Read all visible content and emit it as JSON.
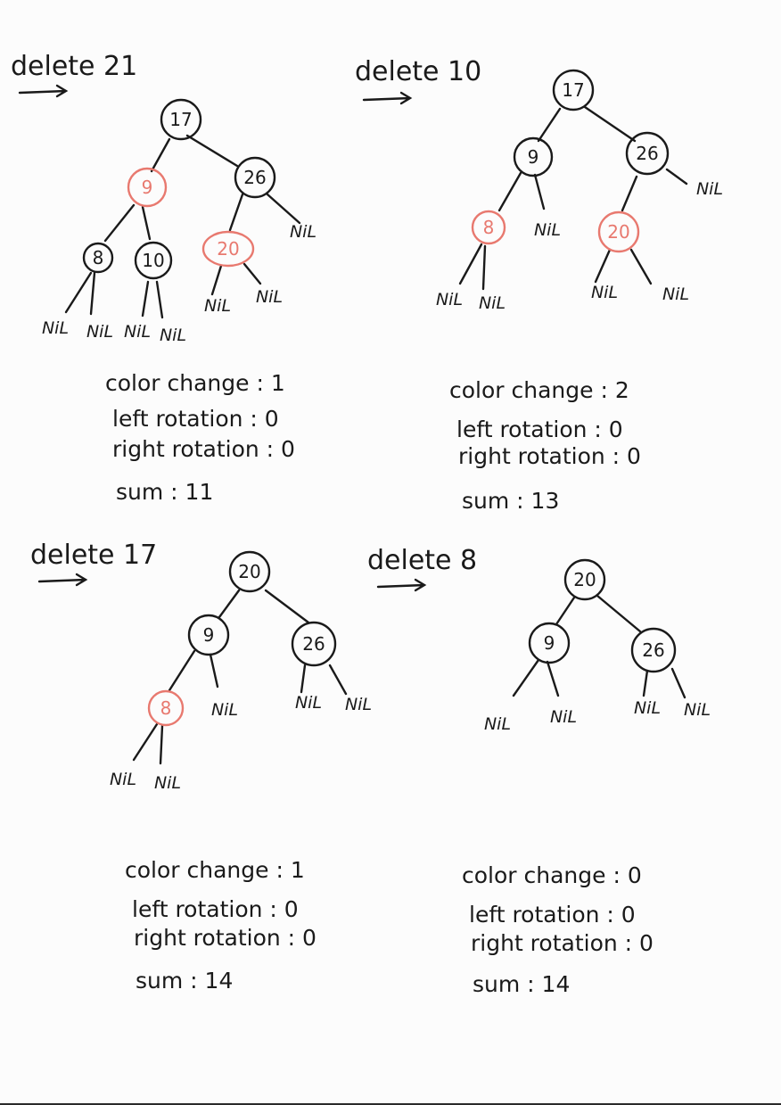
{
  "colors": {
    "black": "#1a1a1a",
    "red": "#e8796f"
  },
  "panels": [
    {
      "title": "delete 21",
      "nodes": [
        {
          "label": "17",
          "color": "black"
        },
        {
          "label": "9",
          "color": "red"
        },
        {
          "label": "26",
          "color": "black"
        },
        {
          "label": "8",
          "color": "black"
        },
        {
          "label": "10",
          "color": "black"
        },
        {
          "label": "20",
          "color": "red"
        }
      ],
      "nils": [
        "NiL",
        "NiL",
        "NiL",
        "NiL",
        "NiL",
        "NiL",
        "NiL"
      ],
      "stats": {
        "color_change": "color change : 1",
        "left_rotation": "left rotation : 0",
        "right_rotation": "right rotation : 0",
        "sum": "sum : 11"
      }
    },
    {
      "title": "delete 10",
      "nodes": [
        {
          "label": "17",
          "color": "black"
        },
        {
          "label": "9",
          "color": "black"
        },
        {
          "label": "26",
          "color": "black"
        },
        {
          "label": "8",
          "color": "red"
        },
        {
          "label": "20",
          "color": "red"
        }
      ],
      "nils": [
        "NiL",
        "NiL",
        "NiL",
        "NiL",
        "NiL",
        "NiL"
      ],
      "stats": {
        "color_change": "color change : 2",
        "left_rotation": "left rotation : 0",
        "right_rotation": "right rotation : 0",
        "sum": "sum : 13"
      }
    },
    {
      "title": "delete 17",
      "nodes": [
        {
          "label": "20",
          "color": "black"
        },
        {
          "label": "9",
          "color": "black"
        },
        {
          "label": "26",
          "color": "black"
        },
        {
          "label": "8",
          "color": "red"
        }
      ],
      "nils": [
        "NiL",
        "NiL",
        "NiL",
        "NiL",
        "NiL"
      ],
      "stats": {
        "color_change": "color change : 1",
        "left_rotation": "left rotation : 0",
        "right_rotation": "right rotation : 0",
        "sum": "sum : 14"
      }
    },
    {
      "title": "delete 8",
      "nodes": [
        {
          "label": "20",
          "color": "black"
        },
        {
          "label": "9",
          "color": "black"
        },
        {
          "label": "26",
          "color": "black"
        }
      ],
      "nils": [
        "NiL",
        "NiL",
        "NiL",
        "NiL"
      ],
      "stats": {
        "color_change": "color change : 0",
        "left_rotation": "left rotation : 0",
        "right_rotation": "right rotation : 0",
        "sum": "sum : 14"
      }
    }
  ]
}
